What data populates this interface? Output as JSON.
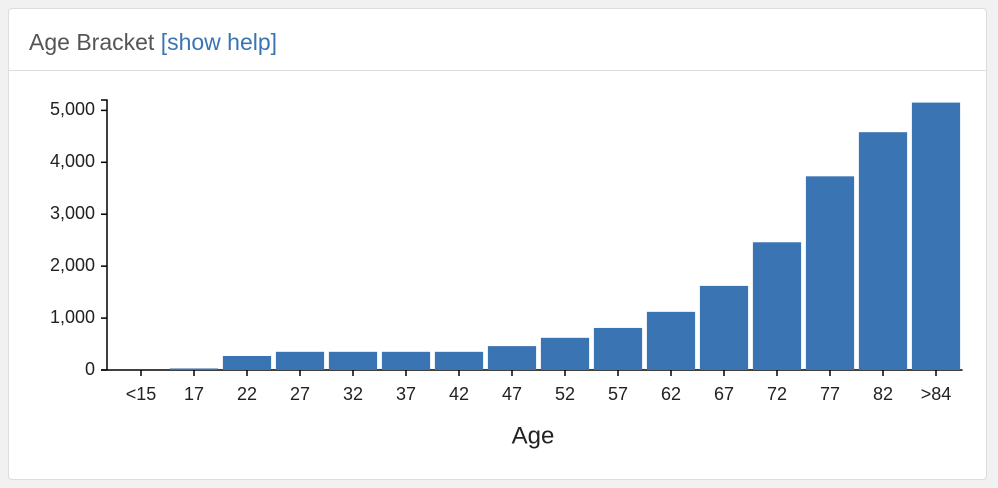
{
  "header": {
    "title": "Age Bracket",
    "link": "[show help]"
  },
  "chart_data": {
    "type": "bar",
    "x_label": "Age",
    "categories": [
      "<15",
      "17",
      "22",
      "27",
      "32",
      "37",
      "42",
      "47",
      "52",
      "57",
      "62",
      "67",
      "72",
      "77",
      "82",
      ">84"
    ],
    "values": [
      0,
      30,
      270,
      350,
      350,
      350,
      350,
      460,
      620,
      810,
      1120,
      1620,
      2460,
      3730,
      4580,
      5150
    ],
    "color": "#3a74b2",
    "ylim": [
      0,
      5200
    ],
    "yticks": [
      0,
      {
        "value": 1000,
        "label": "1,000"
      },
      {
        "value": 2000,
        "label": "2,000"
      },
      {
        "value": 3000,
        "label": "3,000"
      },
      {
        "value": 4000,
        "label": "4,000"
      },
      {
        "value": 5000,
        "label": "5,000"
      }
    ],
    "grid": false
  }
}
